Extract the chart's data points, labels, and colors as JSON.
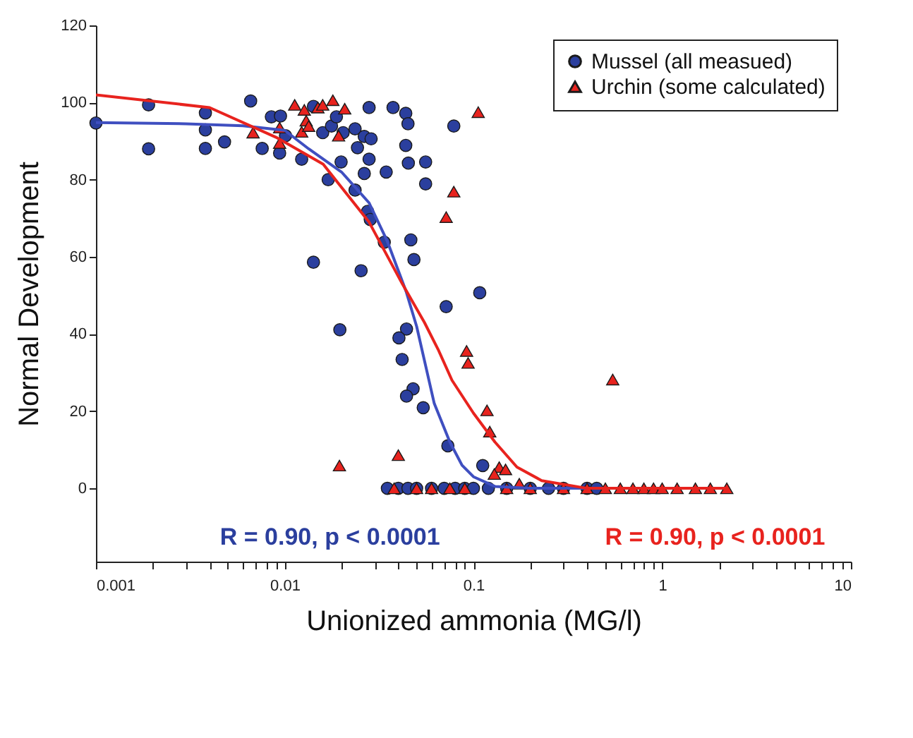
{
  "chart_data": {
    "type": "scatter",
    "xlabel": "Unionized ammonia (MG/l)",
    "ylabel": "Normal Development",
    "log": "x",
    "grid": false,
    "legend": "top right",
    "xlim": [
      0.001,
      10
    ],
    "ylim": [
      -19,
      120
    ],
    "xticks": [
      0.001,
      {
        "value": 0.002,
        "label": null
      },
      {
        "value": 0.003,
        "label": null
      },
      {
        "value": 0.004,
        "label": null
      },
      {
        "value": 0.005,
        "label": null
      },
      {
        "value": 0.006,
        "label": null
      },
      {
        "value": 0.007,
        "label": null
      },
      {
        "value": 0.008,
        "label": null
      },
      {
        "value": 0.009,
        "label": null
      },
      0.01,
      {
        "value": 0.02,
        "label": null
      },
      {
        "value": 0.03,
        "label": null
      },
      {
        "value": 0.04,
        "label": null
      },
      {
        "value": 0.05,
        "label": null
      },
      {
        "value": 0.06,
        "label": null
      },
      {
        "value": 0.07,
        "label": null
      },
      {
        "value": 0.08,
        "label": null
      },
      {
        "value": 0.09,
        "label": null
      },
      0.1,
      {
        "value": 0.2,
        "label": null
      },
      {
        "value": 0.3,
        "label": null
      },
      {
        "value": 0.4,
        "label": null
      },
      {
        "value": 0.5,
        "label": null
      },
      {
        "value": 0.6,
        "label": null
      },
      {
        "value": 0.7,
        "label": null
      },
      {
        "value": 0.8,
        "label": null
      },
      {
        "value": 0.9,
        "label": null
      },
      1,
      {
        "value": 2,
        "label": null
      },
      {
        "value": 3,
        "label": null
      },
      {
        "value": 4,
        "label": null
      },
      {
        "value": 5,
        "label": null
      },
      {
        "value": 6,
        "label": null
      },
      {
        "value": 7,
        "label": null
      },
      {
        "value": 8,
        "label": null
      },
      {
        "value": 9,
        "label": null
      },
      10
    ],
    "yticks": [
      0,
      20,
      40,
      60,
      80,
      100,
      120
    ],
    "annotations": [
      "R = 0.90, p < 0.0001",
      "R = 0.90, p < 0.0001"
    ],
    "series": [
      {
        "name": "Mussel (all measued)",
        "color": "#2b3f9e",
        "marker": "circle",
        "x": [
          0.001,
          0.0019,
          0.0019,
          0.0038,
          0.0038,
          0.0038,
          0.0048,
          0.0066,
          0.0085,
          0.0095,
          0.0076,
          0.0094,
          0.0101,
          0.0123,
          0.0142,
          0.0159,
          0.0177,
          0.0188,
          0.0199,
          0.0204,
          0.0236,
          0.0243,
          0.0264,
          0.028,
          0.0287,
          0.028,
          0.0264,
          0.0345,
          0.0375,
          0.0438,
          0.045,
          0.0438,
          0.0452,
          0.0558,
          0.0558,
          0.0787,
          0.017,
          0.0236,
          0.0275,
          0.0284,
          0.0337,
          0.0466,
          0.0484,
          0.0142,
          0.0254,
          0.0196,
          0.108,
          0.0717,
          0.0442,
          0.0403,
          0.0419,
          0.0479,
          0.0442,
          0.0542,
          0.0732,
          0.112,
          0.035,
          0.04,
          0.045,
          0.05,
          0.06,
          0.07,
          0.08,
          0.09,
          0.1,
          0.12,
          0.15,
          0.2,
          0.25,
          0.3,
          0.4,
          0.45
        ],
        "values": [
          94.7,
          99.4,
          88,
          97.3,
          92.9,
          88.1,
          89.8,
          100.4,
          96.3,
          96.5,
          88.1,
          86.9,
          91.4,
          85.3,
          99,
          92.2,
          93.9,
          96.3,
          84.6,
          92.2,
          93.2,
          88.3,
          91.2,
          98.7,
          90.6,
          85.3,
          81.6,
          82,
          98.7,
          97.2,
          94.5,
          88.9,
          84.3,
          84.6,
          78.9,
          93.9,
          80,
          77.3,
          71.8,
          69.7,
          63.8,
          64.4,
          59.3,
          58.6,
          56.4,
          41.1,
          50.7,
          47.1,
          41.3,
          39,
          33.4,
          25.8,
          23.9,
          20.9,
          11,
          5.9,
          0,
          0,
          0,
          0,
          0,
          0,
          0,
          0,
          0,
          0,
          0,
          0,
          0,
          0,
          0,
          0
        ]
      },
      {
        "name": "Urchin (some calculated)",
        "color": "#e8231e",
        "marker": "triangle",
        "x": [
          0.0113,
          0.0127,
          0.015,
          0.0159,
          0.018,
          0.0208,
          0.013,
          0.0123,
          0.0094,
          0.0068,
          0.0094,
          0.0193,
          0.0134,
          0.0787,
          0.0717,
          0.106,
          0.0195,
          0.04,
          0.092,
          0.0937,
          0.118,
          0.122,
          0.547,
          0.137,
          0.148,
          0.129,
          0.175,
          0.038,
          0.05,
          0.06,
          0.075,
          0.09,
          0.15,
          0.2,
          0.3,
          0.4,
          0.5,
          0.6,
          0.7,
          0.8,
          0.9,
          1.0,
          1.2,
          1.5,
          1.8,
          2.2
        ],
        "values": [
          99.4,
          98.1,
          98.7,
          99.4,
          100.6,
          98.4,
          95.3,
          92.4,
          93.5,
          92.2,
          89.5,
          91.4,
          93.9,
          76.9,
          70.3,
          97.5,
          5.9,
          8.6,
          35.6,
          32.5,
          20.2,
          14.7,
          28.2,
          5.5,
          4.9,
          3.7,
          1.2,
          0,
          0,
          0,
          0,
          0,
          0,
          0,
          0,
          0,
          0,
          0,
          0,
          0,
          0,
          0,
          0,
          0,
          0,
          0
        ]
      },
      {
        "color": "#3f4fc0",
        "type": "line",
        "marker": "none",
        "line_style": "solid",
        "x": [
          0.001,
          0.003,
          0.006,
          0.01,
          0.0134,
          0.02,
          0.028,
          0.035,
          0.044,
          0.05,
          0.062,
          0.075,
          0.087,
          0.1,
          0.13,
          0.2,
          0.3,
          0.5
        ],
        "values": [
          94.8,
          94.5,
          94,
          92.8,
          88,
          82,
          74,
          64,
          51,
          42,
          22,
          12,
          6,
          3,
          0.5,
          0,
          0,
          0
        ]
      },
      {
        "color": "#e8231e",
        "type": "line",
        "marker": "none",
        "line_style": "solid",
        "x": [
          0.001,
          0.004,
          0.009,
          0.016,
          0.028,
          0.042,
          0.055,
          0.065,
          0.077,
          0.1,
          0.13,
          0.17,
          0.23,
          0.4,
          2.2
        ],
        "values": [
          102,
          98.7,
          91,
          84,
          69,
          53,
          43,
          36,
          28,
          19.5,
          12,
          5.5,
          2,
          0,
          0
        ]
      }
    ]
  }
}
